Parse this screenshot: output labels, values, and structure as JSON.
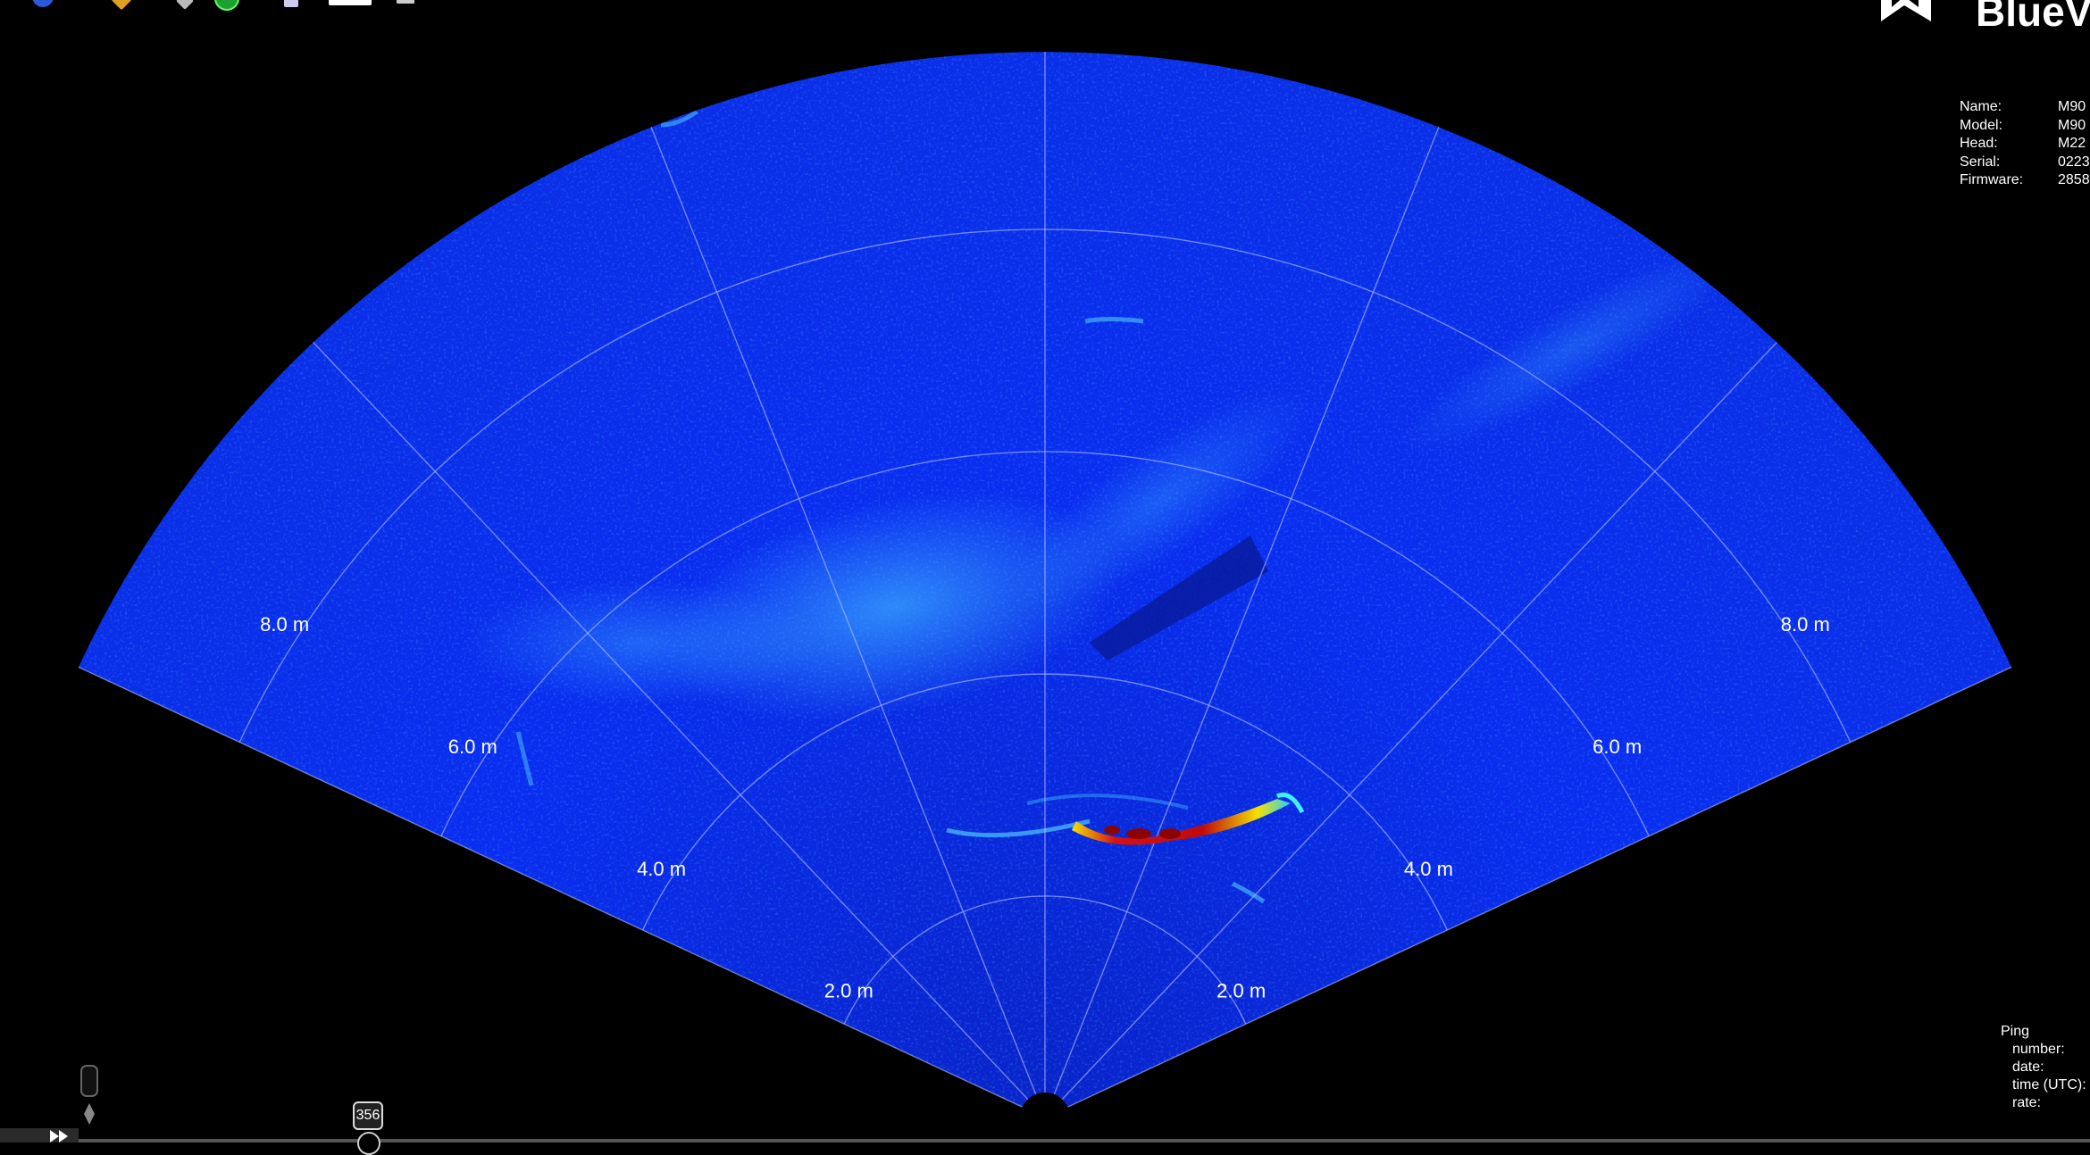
{
  "colors": {
    "background": "#000000",
    "sonar_base": "#0a2df0",
    "grid": "#b8c2ff",
    "target_hot": "#d81010",
    "target_warm": "#f4e200"
  },
  "sonar": {
    "range_labels": [
      "2.0 m",
      "4.0 m",
      "6.0 m",
      "8.0 m"
    ]
  },
  "toolbar": {
    "icons": [
      "settings-icon",
      "pencil-icon",
      "pointer-icon",
      "globe-icon",
      "antenna-icon",
      "window-icon",
      "note-icon"
    ]
  },
  "brand": {
    "logo_text": "BlueV"
  },
  "device_info": {
    "rows": [
      {
        "key": "Name:",
        "value": "M90"
      },
      {
        "key": "Model:",
        "value": "M90"
      },
      {
        "key": "Head:",
        "value": "M22"
      },
      {
        "key": "Serial:",
        "value": "0223"
      },
      {
        "key": "Firmware:",
        "value": "2858"
      }
    ]
  },
  "ping_info": {
    "title": "Ping",
    "rows": [
      "number:",
      "date:",
      "time (UTC):",
      "rate:"
    ]
  },
  "playback": {
    "ping_index": "356"
  }
}
